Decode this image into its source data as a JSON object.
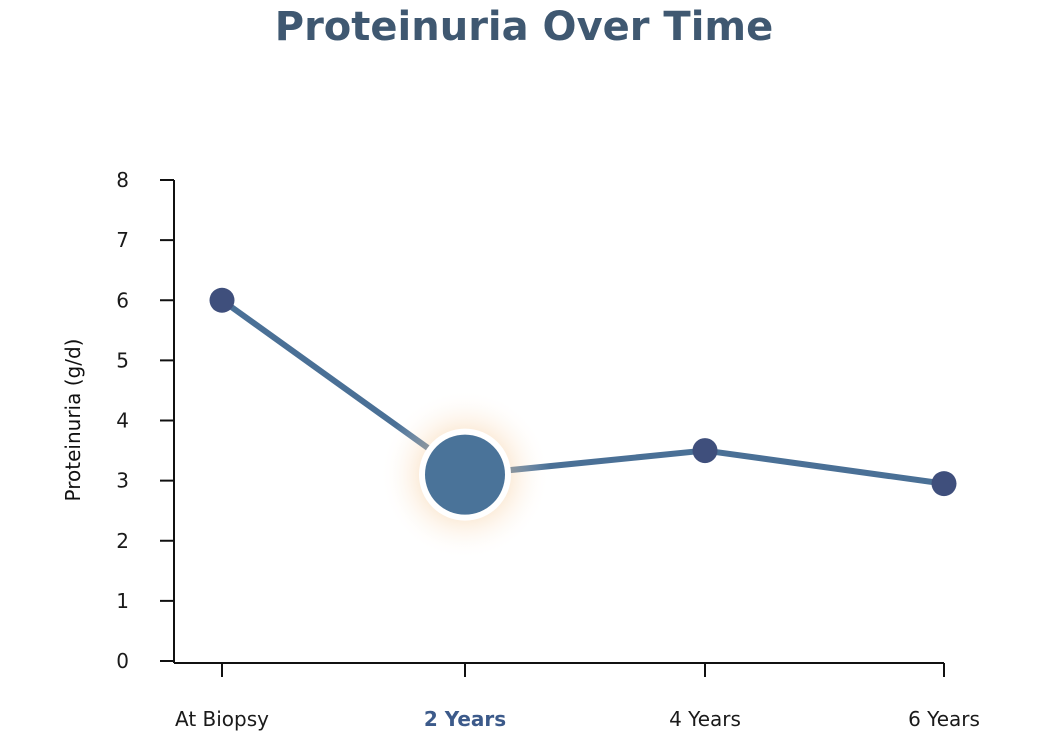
{
  "chart_data": {
    "type": "line",
    "title": "Proteinuria Over Time",
    "ylabel": "Proteinuria (g/d)",
    "xlabel": "",
    "categories": [
      "At Biopsy",
      "2 Years",
      "4 Years",
      "6 Years"
    ],
    "values": [
      6.0,
      3.1,
      3.5,
      2.95
    ],
    "highlight_index": 1,
    "ylim": [
      0,
      8
    ],
    "yticks": [
      0,
      1,
      2,
      3,
      4,
      5,
      6,
      7,
      8
    ],
    "grid": false,
    "colors": {
      "line": "#4a7096",
      "marker": "#3f4f7c",
      "highlight_marker": "#4a7399",
      "highlight_glow": "#f3b979",
      "highlight_label": "#3c5a8a",
      "title": "#3f5871"
    }
  }
}
